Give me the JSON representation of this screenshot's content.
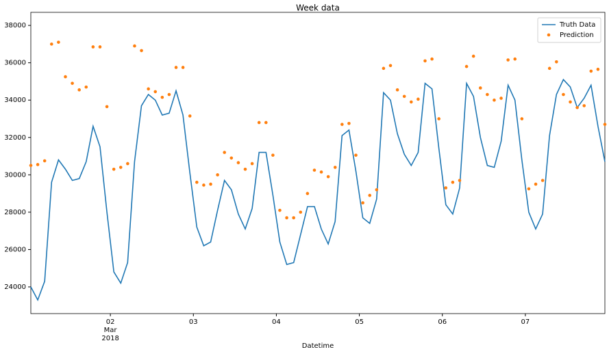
{
  "chart_data": {
    "type": "line",
    "title": "Week data",
    "xlabel": "Datetime",
    "x": [
      "2018-03-01 01:00",
      "2018-03-01 03:00",
      "2018-03-01 05:00",
      "2018-03-01 07:00",
      "2018-03-01 09:00",
      "2018-03-01 11:00",
      "2018-03-01 13:00",
      "2018-03-01 15:00",
      "2018-03-01 17:00",
      "2018-03-01 19:00",
      "2018-03-01 21:00",
      "2018-03-01 23:00",
      "2018-03-02 01:00",
      "2018-03-02 03:00",
      "2018-03-02 05:00",
      "2018-03-02 07:00",
      "2018-03-02 09:00",
      "2018-03-02 11:00",
      "2018-03-02 13:00",
      "2018-03-02 15:00",
      "2018-03-02 17:00",
      "2018-03-02 19:00",
      "2018-03-02 21:00",
      "2018-03-02 23:00",
      "2018-03-03 01:00",
      "2018-03-03 03:00",
      "2018-03-03 05:00",
      "2018-03-03 07:00",
      "2018-03-03 09:00",
      "2018-03-03 11:00",
      "2018-03-03 13:00",
      "2018-03-03 15:00",
      "2018-03-03 17:00",
      "2018-03-03 19:00",
      "2018-03-03 21:00",
      "2018-03-03 23:00",
      "2018-03-04 01:00",
      "2018-03-04 03:00",
      "2018-03-04 05:00",
      "2018-03-04 07:00",
      "2018-03-04 09:00",
      "2018-03-04 11:00",
      "2018-03-04 13:00",
      "2018-03-04 15:00",
      "2018-03-04 17:00",
      "2018-03-04 19:00",
      "2018-03-04 21:00",
      "2018-03-04 23:00",
      "2018-03-05 01:00",
      "2018-03-05 03:00",
      "2018-03-05 05:00",
      "2018-03-05 07:00",
      "2018-03-05 09:00",
      "2018-03-05 11:00",
      "2018-03-05 13:00",
      "2018-03-05 15:00",
      "2018-03-05 17:00",
      "2018-03-05 19:00",
      "2018-03-05 21:00",
      "2018-03-05 23:00",
      "2018-03-06 01:00",
      "2018-03-06 03:00",
      "2018-03-06 05:00",
      "2018-03-06 07:00",
      "2018-03-06 09:00",
      "2018-03-06 11:00",
      "2018-03-06 13:00",
      "2018-03-06 15:00",
      "2018-03-06 17:00",
      "2018-03-06 19:00",
      "2018-03-06 21:00",
      "2018-03-06 23:00",
      "2018-03-07 01:00",
      "2018-03-07 03:00",
      "2018-03-07 05:00",
      "2018-03-07 07:00",
      "2018-03-07 09:00",
      "2018-03-07 11:00",
      "2018-03-07 13:00",
      "2018-03-07 15:00",
      "2018-03-07 17:00",
      "2018-03-07 19:00",
      "2018-03-07 21:00",
      "2018-03-07 23:00"
    ],
    "series": [
      {
        "name": "Truth Data",
        "color": "#1f77b4",
        "mode": "line",
        "values": [
          24000,
          23300,
          24300,
          29600,
          30800,
          30300,
          29700,
          29800,
          30700,
          32600,
          31500,
          28000,
          24800,
          24200,
          25300,
          30700,
          33700,
          34300,
          34000,
          33200,
          33300,
          34500,
          33200,
          30100,
          27200,
          26200,
          26400,
          28100,
          29700,
          29200,
          27900,
          27100,
          28200,
          31200,
          31200,
          28900,
          26400,
          25200,
          25300,
          26800,
          28300,
          28300,
          27100,
          26300,
          27500,
          32100,
          32400,
          30200,
          27700,
          27400,
          28700,
          34400,
          34000,
          32200,
          31100,
          30500,
          31200,
          34900,
          34600,
          31400,
          28400,
          27900,
          29300,
          34900,
          34200,
          32000,
          30500,
          30400,
          31800,
          34800,
          34000,
          30800,
          28000,
          27100,
          27900,
          32100,
          34300,
          35100,
          34700,
          33600,
          34100,
          34800,
          32600,
          30700
        ]
      },
      {
        "name": "Prediction",
        "color": "#ff7f0e",
        "mode": "markers",
        "values": [
          30500,
          30550,
          30750,
          37000,
          37100,
          35250,
          34900,
          34550,
          34700,
          36850,
          36850,
          33650,
          30300,
          30400,
          30600,
          36900,
          36650,
          34600,
          34450,
          34150,
          34300,
          35750,
          35750,
          33150,
          29600,
          29450,
          29500,
          30000,
          31200,
          30900,
          30650,
          30300,
          30600,
          32800,
          32800,
          31050,
          28100,
          27700,
          27700,
          28000,
          29000,
          30250,
          30150,
          29900,
          30400,
          32700,
          32750,
          31050,
          28500,
          28900,
          29200,
          35700,
          35850,
          34550,
          34200,
          33900,
          34050,
          36100,
          36200,
          33000,
          29300,
          29600,
          29700,
          35800,
          36350,
          34650,
          34300,
          34000,
          34100,
          36150,
          36200,
          33000,
          29250,
          29500,
          29700,
          35700,
          36050,
          34300,
          33900,
          33600,
          33700,
          35550,
          35650,
          32700
        ]
      }
    ],
    "xlim": [
      "2018-03-01 01:00",
      "2018-03-07 23:00"
    ],
    "xticks": [
      {
        "value": "2018-03-02 00:00",
        "label": "02"
      },
      {
        "value": "2018-03-03 00:00",
        "label": "03"
      },
      {
        "value": "2018-03-04 00:00",
        "label": "04"
      },
      {
        "value": "2018-03-05 00:00",
        "label": "05"
      },
      {
        "value": "2018-03-06 00:00",
        "label": "06"
      },
      {
        "value": "2018-03-07 00:00",
        "label": "07"
      }
    ],
    "xtick_month_label": "Mar",
    "xtick_year_label": "2018",
    "ylim": [
      22570,
      38700
    ],
    "yticks": [
      24000,
      26000,
      28000,
      30000,
      32000,
      34000,
      36000,
      38000
    ],
    "grid": false,
    "legend": "upper right"
  }
}
